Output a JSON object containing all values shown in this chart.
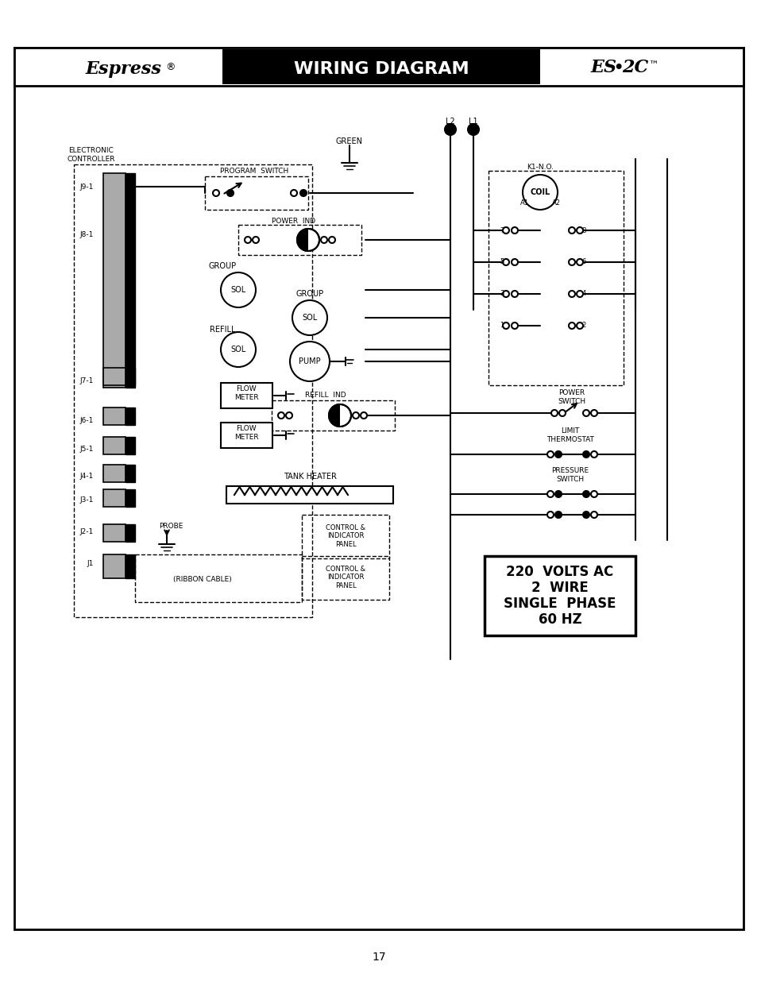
{
  "title_left": "Espress ®",
  "title_center": "WIRING DIAGRAM",
  "title_right": "ES•2C™",
  "page_number": "17",
  "bg_color": "#ffffff",
  "border_color": "#000000",
  "header_bg": "#000000",
  "header_text_color": "#ffffff",
  "header_left_bg": "#ffffff",
  "header_left_text": "#000000",
  "voltage_box_text": [
    "220  VOLTS AC",
    "2  WIRE",
    "SINGLE  PHASE",
    "60 HZ"
  ],
  "labels": {
    "electronic_controller": "ELECTRONIC\nCONTROLLER",
    "program_switch": "PROGRAM  SWITCH",
    "green": "GREEN",
    "power_ind": "POWER  IND",
    "group": "GROUP",
    "sol": "SOL",
    "refill": "REFILL",
    "pump": "PUMP",
    "flow_meter": "FLOW\nMETER",
    "refill_ind": "REFILL  IND",
    "tank_heater": "TANK HEATER",
    "power_switch": "POWER\nSWITCH",
    "limit_thermostat": "LIMIT\nTHERMOSTAT",
    "pressure_switch": "PRESSURE\nSWITCH",
    "k1_no": "K1-N.O.",
    "coil": "COIL",
    "ribbon_cable": "(RIBBON CABLE)",
    "probe": "PROBE",
    "control_indicator": "CONTROL &\nINDICATOR\nPANEL",
    "j9": "J9-1",
    "j8": "J8-1",
    "j7": "J7-1",
    "j6": "J6-1",
    "j5": "J5-1",
    "j4": "J4-1",
    "j3": "J3-1",
    "j2": "J2-1",
    "j1": "J1",
    "l1": "L1",
    "l2": "L2",
    "a1": "A1",
    "a2": "A2"
  }
}
